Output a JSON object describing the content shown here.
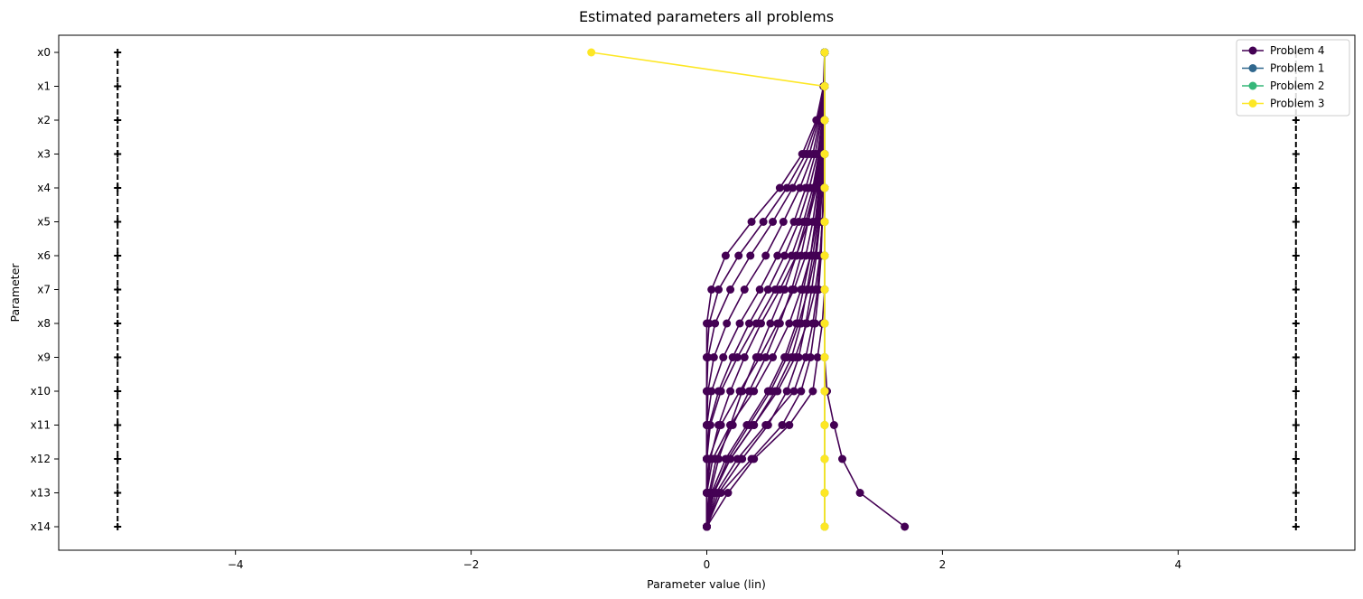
{
  "chart_data": {
    "type": "line",
    "title": "Estimated parameters all problems",
    "xlabel": "Parameter value (lin)",
    "ylabel": "Parameter",
    "xlim": [
      -5.5,
      5.5
    ],
    "xticks": [
      -4,
      -2,
      0,
      2,
      4
    ],
    "categories": [
      "x0",
      "x1",
      "x2",
      "x3",
      "x4",
      "x5",
      "x6",
      "x7",
      "x8",
      "x9",
      "x10",
      "x11",
      "x12",
      "x13",
      "x14"
    ],
    "bounds": {
      "lower": -5,
      "upper": 5,
      "color": "#000000"
    },
    "grid": false,
    "legend_position": "top-right",
    "legend": [
      {
        "name": "Problem 4",
        "color": "#440154"
      },
      {
        "name": "Problem 1",
        "color": "#31688e"
      },
      {
        "name": "Problem 2",
        "color": "#35b779"
      },
      {
        "name": "Problem 3",
        "color": "#fde725"
      }
    ],
    "series": [
      {
        "group": "Problem 4",
        "color": "#440154",
        "values": [
          1,
          1,
          1,
          1,
          1,
          1,
          1,
          1,
          1,
          1,
          1.02,
          1.08,
          1.15,
          1.3,
          1.68
        ]
      },
      {
        "group": "Problem 4",
        "color": "#440154",
        "values": [
          1,
          1,
          1,
          1,
          1,
          1,
          1,
          1,
          0.98,
          0.94,
          0.9,
          0.7,
          0.4,
          0.18,
          0
        ]
      },
      {
        "group": "Problem 4",
        "color": "#440154",
        "values": [
          1,
          1,
          1,
          1,
          1,
          0.98,
          0.96,
          0.92,
          0.85,
          0.75,
          0.6,
          0.4,
          0.2,
          0.05,
          0
        ]
      },
      {
        "group": "Problem 4",
        "color": "#440154",
        "values": [
          1,
          1,
          0.99,
          0.98,
          0.96,
          0.93,
          0.88,
          0.8,
          0.7,
          0.56,
          0.4,
          0.2,
          0.05,
          0,
          0
        ]
      },
      {
        "group": "Problem 4",
        "color": "#440154",
        "values": [
          1,
          1,
          0.99,
          0.97,
          0.94,
          0.9,
          0.84,
          0.74,
          0.6,
          0.45,
          0.28,
          0.12,
          0.02,
          0,
          0
        ]
      },
      {
        "group": "Problem 4",
        "color": "#440154",
        "values": [
          1,
          1,
          0.98,
          0.95,
          0.9,
          0.82,
          0.72,
          0.58,
          0.42,
          0.26,
          0.12,
          0.03,
          0,
          0,
          0
        ]
      },
      {
        "group": "Problem 4",
        "color": "#440154",
        "values": [
          1,
          1,
          0.97,
          0.92,
          0.84,
          0.74,
          0.6,
          0.45,
          0.28,
          0.14,
          0.04,
          0,
          0,
          0,
          0
        ]
      },
      {
        "group": "Problem 4",
        "color": "#440154",
        "values": [
          1,
          1,
          0.96,
          0.9,
          0.79,
          0.65,
          0.5,
          0.32,
          0.17,
          0.06,
          0.01,
          0,
          0,
          0,
          0
        ]
      },
      {
        "group": "Problem 4",
        "color": "#440154",
        "values": [
          1,
          1,
          0.95,
          0.87,
          0.73,
          0.56,
          0.37,
          0.2,
          0.07,
          0.01,
          0,
          0,
          0,
          0,
          0
        ]
      },
      {
        "group": "Problem 4",
        "color": "#440154",
        "values": [
          1,
          1,
          0.94,
          0.84,
          0.68,
          0.48,
          0.27,
          0.1,
          0.02,
          0,
          0,
          0,
          0,
          0,
          0
        ]
      },
      {
        "group": "Problem 4",
        "color": "#440154",
        "values": [
          1,
          0.99,
          0.93,
          0.81,
          0.62,
          0.38,
          0.16,
          0.04,
          0,
          0,
          0,
          0,
          0,
          0,
          0
        ]
      },
      {
        "group": "Problem 4",
        "color": "#440154",
        "values": [
          1,
          1,
          0.99,
          0.97,
          0.92,
          0.84,
          0.76,
          0.66,
          0.54,
          0.42,
          0.3,
          0.2,
          0.1,
          0.03,
          0
        ]
      },
      {
        "group": "Problem 4",
        "color": "#440154",
        "values": [
          1,
          1,
          0.99,
          0.96,
          0.91,
          0.86,
          0.8,
          0.72,
          0.62,
          0.5,
          0.36,
          0.22,
          0.08,
          0.02,
          0
        ]
      },
      {
        "group": "Problem 4",
        "color": "#440154",
        "values": [
          1,
          1,
          0.99,
          0.98,
          0.95,
          0.92,
          0.88,
          0.82,
          0.76,
          0.66,
          0.52,
          0.34,
          0.16,
          0.04,
          0
        ]
      },
      {
        "group": "Problem 4",
        "color": "#440154",
        "values": [
          1,
          1,
          1,
          0.99,
          0.98,
          0.96,
          0.93,
          0.89,
          0.84,
          0.78,
          0.68,
          0.52,
          0.3,
          0.1,
          0
        ]
      },
      {
        "group": "Problem 4",
        "color": "#440154",
        "values": [
          1,
          1,
          1,
          0.99,
          0.97,
          0.95,
          0.92,
          0.86,
          0.78,
          0.68,
          0.54,
          0.36,
          0.18,
          0.06,
          0
        ]
      },
      {
        "group": "Problem 4",
        "color": "#440154",
        "values": [
          1,
          1,
          0.99,
          0.98,
          0.96,
          0.94,
          0.9,
          0.85,
          0.8,
          0.72,
          0.58,
          0.4,
          0.2,
          0.06,
          0
        ]
      },
      {
        "group": "Problem 4",
        "color": "#440154",
        "values": [
          1,
          1,
          1,
          0.99,
          0.99,
          0.98,
          0.97,
          0.95,
          0.92,
          0.88,
          0.8,
          0.64,
          0.38,
          0.12,
          0
        ]
      },
      {
        "group": "Problem 4",
        "color": "#440154",
        "values": [
          1,
          1,
          1,
          1,
          0.99,
          0.98,
          0.96,
          0.94,
          0.9,
          0.84,
          0.74,
          0.5,
          0.26,
          0.08,
          0
        ]
      },
      {
        "group": "Problem 4",
        "color": "#440154",
        "values": [
          1,
          1,
          0.99,
          0.97,
          0.93,
          0.86,
          0.76,
          0.62,
          0.46,
          0.32,
          0.2,
          0.1,
          0.03,
          0,
          0
        ]
      },
      {
        "group": "Problem 4",
        "color": "#440154",
        "values": [
          1,
          1,
          0.98,
          0.94,
          0.87,
          0.78,
          0.66,
          0.52,
          0.36,
          0.22,
          0.1,
          0.02,
          0,
          0,
          0
        ]
      },
      {
        "group": "Problem 1",
        "color": "#31688e",
        "values": [
          1,
          1,
          1,
          1,
          1,
          1,
          1,
          1,
          1,
          1,
          1,
          1,
          1,
          1,
          1
        ]
      },
      {
        "group": "Problem 2",
        "color": "#35b779",
        "values": [
          1,
          1,
          1,
          1,
          1,
          1,
          1,
          1,
          1,
          1,
          1,
          1,
          1,
          1,
          1
        ]
      },
      {
        "group": "Problem 3",
        "color": "#fde725",
        "values": [
          1,
          1,
          1,
          1,
          1,
          1,
          1,
          1,
          1,
          1,
          1,
          1,
          1,
          1,
          1
        ]
      },
      {
        "group": "Problem 3",
        "color": "#fde725",
        "values": [
          -0.98,
          1,
          1,
          1,
          1,
          1,
          1,
          1,
          1,
          1,
          1,
          1,
          1,
          1,
          1
        ]
      }
    ]
  }
}
